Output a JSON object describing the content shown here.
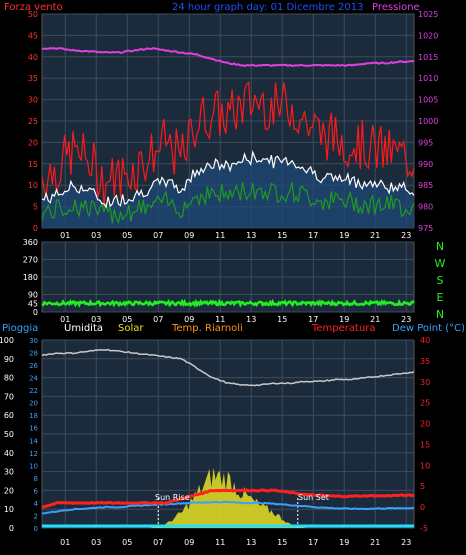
{
  "top_chart": {
    "label_left": "Forza vento",
    "label_center": "24 hour graph day: 01 Dicembre 2013",
    "label_right": "Pressione",
    "left_ticks": [
      "0",
      "5",
      "10",
      "15",
      "20",
      "25",
      "30",
      "35",
      "40",
      "45",
      "50"
    ],
    "right_ticks": [
      "975",
      "980",
      "985",
      "990",
      "995",
      "1000",
      "1005",
      "1010",
      "1015",
      "1020",
      "1025"
    ],
    "x_ticks": [
      "01",
      "03",
      "05",
      "07",
      "09",
      "11",
      "13",
      "15",
      "17",
      "19",
      "21",
      "23"
    ]
  },
  "mid_chart": {
    "left_ticks": [
      "0",
      "45",
      "90",
      "180",
      "270",
      "360"
    ],
    "compass": [
      "N",
      "W",
      "S",
      "E",
      "N"
    ],
    "x_ticks": [
      "01",
      "03",
      "05",
      "07",
      "09",
      "11",
      "13",
      "15",
      "17",
      "19",
      "21",
      "23"
    ]
  },
  "bottom_chart": {
    "legend": {
      "rain": "Pioggia",
      "humidity": "Umidita",
      "solar": "Solar",
      "temp_rm": "Temp. Riarnoli",
      "temperature": "Temperatura",
      "dew": "Dew Point (°C)"
    },
    "left_ticks_hum": [
      "0",
      "10",
      "20",
      "30",
      "40",
      "50",
      "60",
      "70",
      "80",
      "90",
      "100"
    ],
    "left_ticks_rain": [
      "0",
      "2",
      "4",
      "6",
      "8",
      "10",
      "12",
      "14",
      "16",
      "18",
      "20",
      "22",
      "24",
      "26",
      "28",
      "30"
    ],
    "right_ticks": [
      "-5",
      "0",
      "5",
      "10",
      "15",
      "20",
      "25",
      "30",
      "35",
      "40"
    ],
    "sun_rise": "Sun Rise",
    "sun_set": "Sun Set",
    "x_ticks": [
      "01",
      "03",
      "05",
      "07",
      "09",
      "11",
      "13",
      "15",
      "17",
      "19",
      "21",
      "23"
    ]
  },
  "colors": {
    "wind_gust": "#ff1a1a",
    "wind_avg": "#ffffff",
    "wind_green": "#1f9a1f",
    "pressure": "#e040e0",
    "direction": "#22ee22",
    "humidity": "#c8c8c8",
    "temperature": "#ff2020",
    "dew": "#3aa0ff",
    "solar": "#e8e020"
  },
  "chart_data": [
    {
      "type": "line",
      "title": "24 hour graph day: 01 Dicembre 2013",
      "x": [
        0,
        1,
        2,
        3,
        4,
        5,
        6,
        7,
        8,
        9,
        10,
        11,
        12,
        13,
        14,
        15,
        16,
        17,
        18,
        19,
        20,
        21,
        22,
        23,
        24
      ],
      "series": [
        {
          "name": "Forza vento",
          "axis": "left",
          "values": [
            12,
            14,
            18,
            16,
            11,
            12,
            14,
            17,
            20,
            16,
            25,
            27,
            26,
            29,
            30,
            28,
            29,
            25,
            22,
            21,
            20,
            19,
            18,
            17,
            16
          ]
        },
        {
          "name": "Pressione",
          "axis": "right",
          "values": [
            1017,
            1017,
            1016.5,
            1016.3,
            1016,
            1016,
            1016.5,
            1017,
            1016.5,
            1016,
            1015.5,
            1014.5,
            1013.5,
            1013,
            1013,
            1013,
            1013,
            1013,
            1013,
            1013,
            1013,
            1013.5,
            1013.5,
            1013.8,
            1014
          ]
        }
      ],
      "ylim_left": [
        0,
        50
      ],
      "ylim_right": [
        975,
        1025
      ]
    },
    {
      "type": "line",
      "title": "",
      "series": [
        {
          "name": "",
          "values": [
            45,
            45,
            45,
            45,
            45,
            45,
            45,
            45,
            45,
            45,
            45,
            45,
            45,
            45,
            45,
            45,
            45,
            45,
            45,
            45,
            45,
            45,
            45,
            45,
            45
          ]
        }
      ],
      "ylim": [
        0,
        360
      ]
    },
    {
      "type": "line",
      "title": "",
      "series": [
        {
          "name": "Umidita",
          "axis": "left",
          "values": [
            92,
            93,
            93,
            94,
            95,
            94,
            93,
            92,
            91,
            90,
            85,
            80,
            77,
            76,
            76,
            77,
            77,
            78,
            78,
            79,
            79,
            80,
            81,
            82,
            83
          ]
        },
        {
          "name": "Temperatura",
          "axis": "right",
          "values": [
            0,
            1,
            1,
            1,
            1,
            1,
            1,
            1,
            1,
            2,
            3,
            4,
            4,
            4,
            4,
            4,
            3.5,
            3,
            2.8,
            2.6,
            2.6,
            2.7,
            2.7,
            2.8,
            2.8
          ]
        },
        {
          "name": "Dew Point (°C)",
          "axis": "right",
          "values": [
            -1.5,
            -1,
            -0.5,
            -0.3,
            0,
            0,
            0.3,
            0.5,
            0.7,
            0.9,
            1.1,
            1.2,
            1.2,
            1,
            1,
            0.8,
            0.5,
            0.2,
            -0.1,
            -0.3,
            -0.4,
            -0.4,
            -0.3,
            -0.3,
            -0.2
          ]
        },
        {
          "name": "Solar",
          "axis": "left",
          "values": [
            0,
            0,
            0,
            0,
            0,
            0,
            0,
            0,
            2,
            8,
            18,
            28,
            26,
            18,
            12,
            8,
            2,
            0,
            0,
            0,
            0,
            0,
            0,
            0,
            0
          ]
        }
      ],
      "ylim_left": [
        0,
        100
      ],
      "ylim_right": [
        -5,
        40
      ]
    }
  ]
}
